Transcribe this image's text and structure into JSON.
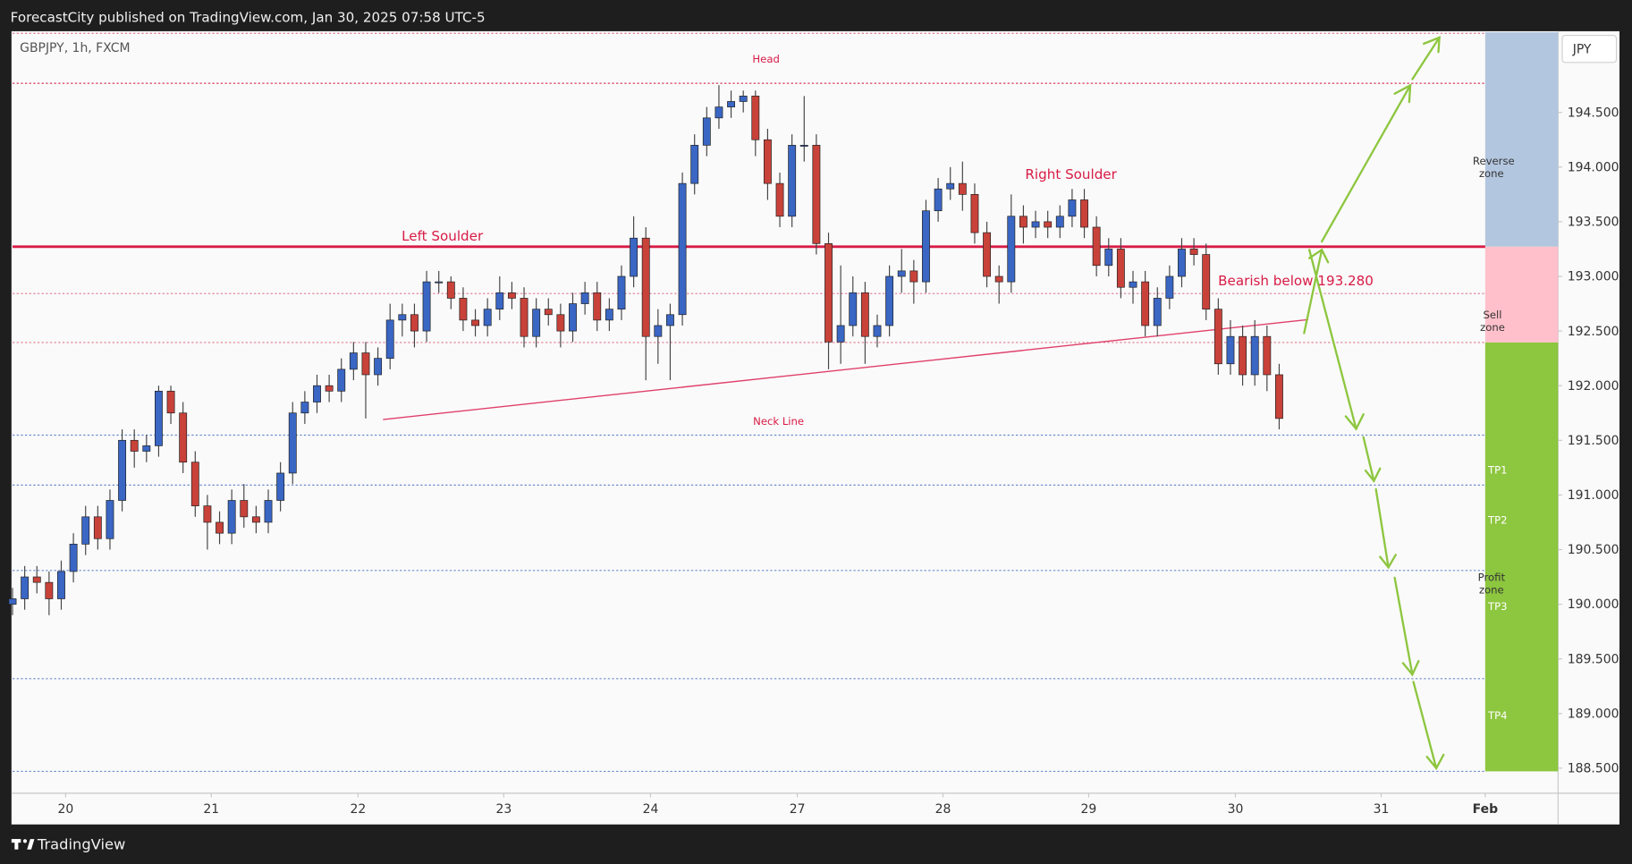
{
  "header": {
    "text": "ForecastCity published on TradingView.com, Jan 30, 2025 07:58 UTC-5"
  },
  "footer": {
    "brand": "TradingView"
  },
  "chart_data": {
    "type": "candlestick",
    "title": "GBPJPY, 1h, FXCM",
    "currency": "JPY",
    "up_color": "#3a66c4",
    "down_color": "#c8423a",
    "x": [
      0,
      2,
      4,
      6,
      8,
      10,
      12,
      14,
      16,
      18,
      20,
      22,
      24,
      26,
      28,
      30,
      32,
      34,
      36,
      38,
      40,
      42,
      44,
      46,
      48,
      50,
      52,
      54,
      56,
      58,
      60,
      62,
      64,
      66,
      68,
      70,
      72,
      74,
      76,
      78,
      80,
      82,
      84,
      86,
      88,
      90,
      92,
      94,
      96,
      98,
      100,
      102,
      104,
      106,
      108,
      110,
      112,
      114,
      116,
      118,
      120,
      122,
      124,
      126,
      128,
      130,
      132,
      134,
      136,
      138,
      140,
      142,
      144,
      146,
      148,
      150,
      152,
      154,
      156,
      158,
      160,
      162,
      164,
      166,
      168,
      170,
      172,
      174,
      176,
      178,
      180,
      182,
      184,
      186,
      188,
      190,
      192,
      194,
      196,
      198,
      200,
      202,
      204,
      206,
      208
    ],
    "open": [
      190.0,
      190.05,
      190.25,
      190.2,
      190.05,
      190.3,
      190.55,
      190.8,
      190.6,
      190.95,
      191.5,
      191.4,
      191.45,
      191.95,
      191.75,
      191.3,
      190.9,
      190.75,
      190.65,
      190.95,
      190.8,
      190.75,
      190.95,
      191.2,
      191.75,
      191.85,
      192.0,
      191.95,
      192.15,
      192.3,
      192.1,
      192.25,
      192.6,
      192.65,
      192.5,
      192.95,
      192.95,
      192.8,
      192.6,
      192.55,
      192.7,
      192.85,
      192.8,
      192.45,
      192.7,
      192.65,
      192.5,
      192.75,
      192.85,
      192.6,
      192.7,
      193.0,
      193.35,
      192.45,
      192.55,
      192.65,
      193.85,
      194.2,
      194.45,
      194.55,
      194.6,
      194.65,
      194.25,
      193.85,
      193.55,
      194.2,
      194.2,
      193.3,
      192.4,
      192.55,
      192.85,
      192.45,
      192.55,
      193.0,
      193.05,
      192.95,
      193.6,
      193.8,
      193.85,
      193.75,
      193.4,
      193.0,
      192.95,
      193.55,
      193.45,
      193.5,
      193.45,
      193.55,
      193.7,
      193.45,
      193.1,
      193.25,
      192.9,
      192.95,
      192.55,
      192.8,
      193.0,
      193.25,
      193.2,
      192.7,
      192.2,
      192.45,
      192.1,
      192.45,
      192.1
    ],
    "high": [
      190.15,
      190.35,
      190.35,
      190.3,
      190.4,
      190.65,
      190.9,
      190.9,
      191.05,
      191.6,
      191.6,
      191.55,
      192.0,
      192.0,
      191.85,
      191.4,
      191.0,
      190.85,
      191.05,
      191.1,
      190.9,
      191.05,
      191.3,
      191.85,
      191.95,
      192.1,
      192.1,
      192.25,
      192.4,
      192.4,
      192.35,
      192.75,
      192.75,
      192.75,
      193.05,
      193.05,
      193.0,
      192.9,
      192.7,
      192.8,
      193.0,
      192.95,
      192.9,
      192.8,
      192.8,
      192.75,
      192.85,
      192.95,
      192.95,
      192.8,
      193.1,
      193.55,
      193.45,
      192.7,
      192.75,
      193.95,
      194.3,
      194.55,
      194.75,
      194.7,
      194.7,
      194.7,
      194.35,
      193.95,
      194.3,
      194.65,
      194.3,
      193.4,
      193.1,
      193.0,
      192.95,
      192.65,
      193.1,
      193.25,
      193.15,
      193.7,
      193.9,
      194.0,
      194.05,
      193.85,
      193.5,
      193.1,
      193.75,
      193.65,
      193.6,
      193.6,
      193.65,
      193.8,
      193.8,
      193.55,
      193.35,
      193.35,
      193.05,
      193.05,
      192.9,
      193.1,
      193.35,
      193.35,
      193.3,
      192.8,
      192.6,
      192.55,
      192.6,
      192.55,
      192.2
    ],
    "low": [
      189.9,
      189.95,
      190.1,
      189.9,
      189.95,
      190.2,
      190.45,
      190.5,
      190.5,
      190.85,
      191.25,
      191.3,
      191.35,
      191.65,
      191.2,
      190.8,
      190.5,
      190.55,
      190.55,
      190.7,
      190.65,
      190.65,
      190.85,
      191.1,
      191.65,
      191.75,
      191.85,
      191.85,
      192.05,
      191.7,
      192.0,
      192.15,
      192.45,
      192.35,
      192.4,
      192.85,
      192.7,
      192.5,
      192.45,
      192.45,
      192.6,
      192.7,
      192.35,
      192.35,
      192.55,
      192.35,
      192.4,
      192.65,
      192.5,
      192.5,
      192.6,
      192.9,
      192.05,
      192.2,
      192.05,
      192.55,
      193.75,
      194.1,
      194.35,
      194.45,
      194.5,
      194.1,
      193.7,
      193.45,
      193.45,
      194.05,
      193.2,
      192.15,
      192.2,
      192.45,
      192.2,
      192.35,
      192.45,
      192.85,
      192.75,
      192.85,
      193.5,
      193.7,
      193.6,
      193.3,
      192.9,
      192.75,
      192.85,
      193.3,
      193.35,
      193.35,
      193.35,
      193.45,
      193.35,
      193.0,
      193.0,
      192.8,
      192.75,
      192.45,
      192.45,
      192.7,
      192.9,
      193.1,
      192.6,
      192.1,
      192.1,
      192.0,
      192.0,
      191.95,
      191.6
    ],
    "close": [
      190.05,
      190.25,
      190.2,
      190.05,
      190.3,
      190.55,
      190.8,
      190.6,
      190.95,
      191.5,
      191.4,
      191.45,
      191.95,
      191.75,
      191.3,
      190.9,
      190.75,
      190.65,
      190.95,
      190.8,
      190.75,
      190.95,
      191.2,
      191.75,
      191.85,
      192.0,
      191.95,
      192.15,
      192.3,
      192.1,
      192.25,
      192.6,
      192.65,
      192.5,
      192.95,
      192.95,
      192.8,
      192.6,
      192.55,
      192.7,
      192.85,
      192.8,
      192.45,
      192.7,
      192.65,
      192.5,
      192.75,
      192.85,
      192.6,
      192.7,
      193.0,
      193.35,
      192.45,
      192.55,
      192.65,
      193.85,
      194.2,
      194.45,
      194.55,
      194.6,
      194.65,
      194.25,
      193.85,
      193.55,
      194.2,
      194.2,
      193.3,
      192.4,
      192.55,
      192.85,
      192.45,
      192.55,
      193.0,
      193.05,
      192.95,
      193.6,
      193.8,
      193.85,
      193.75,
      193.4,
      193.0,
      192.95,
      193.55,
      193.45,
      193.5,
      193.45,
      193.55,
      193.7,
      193.45,
      193.1,
      193.25,
      192.9,
      192.95,
      192.55,
      192.8,
      193.0,
      193.25,
      193.2,
      192.7,
      192.2,
      192.45,
      192.1,
      192.45,
      192.1,
      191.7
    ],
    "xlim": [
      0,
      253.8
    ],
    "ylim": [
      188.271,
      195.243
    ],
    "yticks": [
      {
        "value": 188.5,
        "label": "188.500"
      },
      {
        "value": 189.0,
        "label": "189.000"
      },
      {
        "value": 189.5,
        "label": "189.500"
      },
      {
        "value": 190.0,
        "label": "190.000"
      },
      {
        "value": 190.5,
        "label": "190.500"
      },
      {
        "value": 191.0,
        "label": "191.000"
      },
      {
        "value": 191.5,
        "label": "191.500"
      },
      {
        "value": 192.0,
        "label": "192.000"
      },
      {
        "value": 192.5,
        "label": "192.500"
      },
      {
        "value": 193.0,
        "label": "193.000"
      },
      {
        "value": 193.5,
        "label": "193.500"
      },
      {
        "value": 194.0,
        "label": "194.000"
      },
      {
        "value": 194.5,
        "label": "194.500"
      }
    ],
    "xticks": [
      {
        "value": 8.72,
        "label": "20"
      },
      {
        "value": 32.64,
        "label": "21"
      },
      {
        "value": 56.74,
        "label": "22"
      },
      {
        "value": 80.67,
        "label": "23"
      },
      {
        "value": 104.77,
        "label": "24"
      },
      {
        "value": 128.87,
        "label": "27"
      },
      {
        "value": 152.79,
        "label": "28"
      },
      {
        "value": 176.72,
        "label": "29"
      },
      {
        "value": 200.82,
        "label": "30"
      },
      {
        "value": 224.75,
        "label": "31"
      },
      {
        "value": 241.84,
        "label": "Feb"
      }
    ],
    "annotations": {
      "head": "Head",
      "left_shoulder": "Left Soulder",
      "right_shoulder": "Right Soulder",
      "bearish": "Bearish below 193.280",
      "neck_line": "Neck Line",
      "reverse_zone": "Reverse zone",
      "sell_zone": "Sell zone",
      "profit_zone": "Profit zone",
      "tp1": "TP1",
      "tp2": "TP2",
      "tp3": "TP3",
      "tp4": "TP4"
    }
  }
}
